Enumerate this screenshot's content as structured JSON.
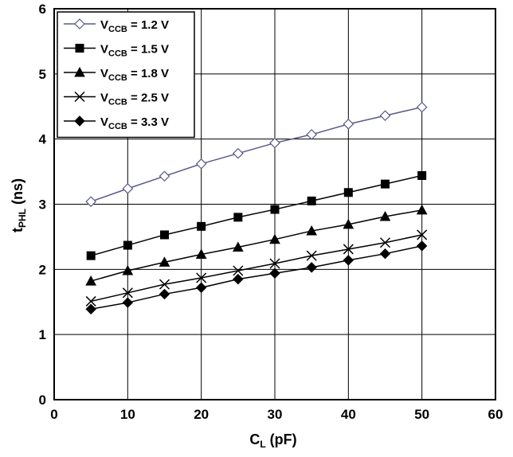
{
  "chart_data": {
    "type": "line",
    "xlabel": {
      "main": "C",
      "sub": "L",
      "suffix": " (pF)"
    },
    "ylabel": {
      "main": "t",
      "sub": "PHL",
      "suffix": " (ns)"
    },
    "xlim": [
      0,
      60
    ],
    "ylim": [
      0,
      6
    ],
    "xticks": [
      0,
      10,
      20,
      30,
      40,
      50,
      60
    ],
    "yticks": [
      0,
      1,
      2,
      3,
      4,
      5,
      6
    ],
    "grid": true,
    "legend_position": "top-left",
    "x": [
      5,
      10,
      15,
      20,
      25,
      30,
      35,
      40,
      45,
      50
    ],
    "series": [
      {
        "name": "V_CCB = 1.2 V",
        "label_main": "V",
        "label_sub": "CCB",
        "label_value": " = 1.2 V",
        "marker": "diamond-open",
        "color": "#5a5a8c",
        "values": [
          3.04,
          3.24,
          3.43,
          3.62,
          3.78,
          3.94,
          4.07,
          4.23,
          4.36,
          4.49
        ]
      },
      {
        "name": "V_CCB = 1.5 V",
        "label_main": "V",
        "label_sub": "CCB",
        "label_value": " = 1.5 V",
        "marker": "square",
        "color": "#000000",
        "values": [
          2.21,
          2.37,
          2.53,
          2.66,
          2.8,
          2.92,
          3.05,
          3.18,
          3.31,
          3.44
        ]
      },
      {
        "name": "V_CCB = 1.8 V",
        "label_main": "V",
        "label_sub": "CCB",
        "label_value": " = 1.8 V",
        "marker": "triangle",
        "color": "#000000",
        "values": [
          1.82,
          1.98,
          2.11,
          2.23,
          2.34,
          2.46,
          2.59,
          2.69,
          2.81,
          2.91
        ]
      },
      {
        "name": "V_CCB = 2.5 V",
        "label_main": "V",
        "label_sub": "CCB",
        "label_value": " = 2.5 V",
        "marker": "x",
        "color": "#000000",
        "values": [
          1.51,
          1.64,
          1.77,
          1.87,
          1.98,
          2.09,
          2.21,
          2.31,
          2.41,
          2.53
        ]
      },
      {
        "name": "V_CCB = 3.3 V",
        "label_main": "V",
        "label_sub": "CCB",
        "label_value": " = 3.3 V",
        "marker": "diamond",
        "color": "#000000",
        "values": [
          1.39,
          1.49,
          1.62,
          1.72,
          1.85,
          1.94,
          2.03,
          2.14,
          2.24,
          2.36
        ]
      }
    ]
  }
}
